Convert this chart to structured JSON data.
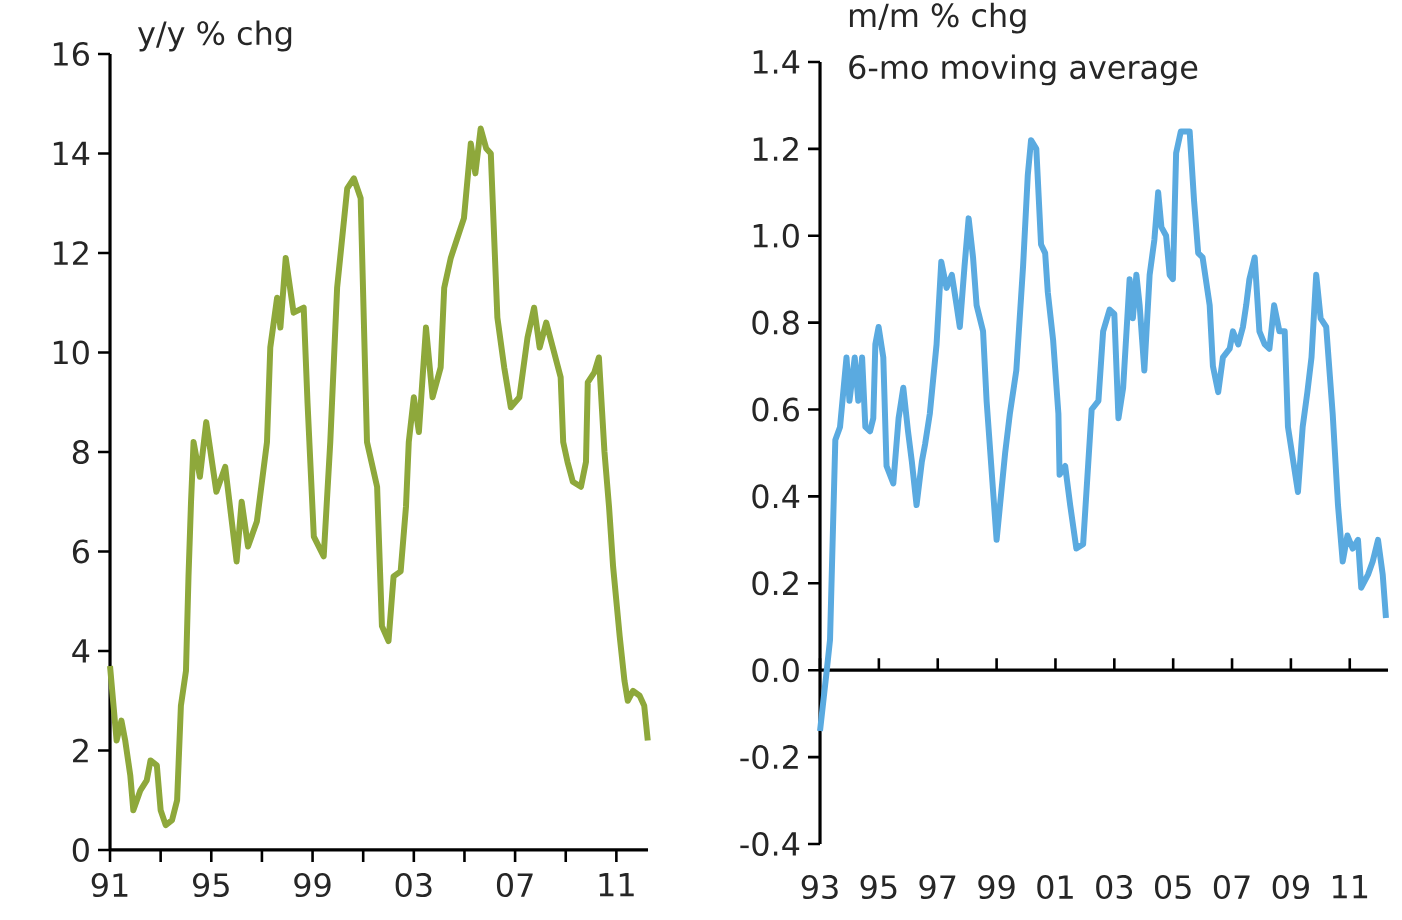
{
  "chart_data": [
    {
      "type": "line",
      "title": "y/y % chg",
      "color": "#8ea83b",
      "xlim": [
        1991,
        2012.25
      ],
      "ylim": [
        0,
        16
      ],
      "xticks": [
        {
          "value": 1991,
          "label": "91"
        },
        {
          "value": 1993,
          "label": null
        },
        {
          "value": 1995,
          "label": "95"
        },
        {
          "value": 1997,
          "label": null
        },
        {
          "value": 1999,
          "label": "99"
        },
        {
          "value": 2001,
          "label": null
        },
        {
          "value": 2003,
          "label": "03"
        },
        {
          "value": 2005,
          "label": null
        },
        {
          "value": 2007,
          "label": "07"
        },
        {
          "value": 2009,
          "label": null
        },
        {
          "value": 2011,
          "label": "11"
        }
      ],
      "yticks": [
        0,
        2,
        4,
        6,
        8,
        10,
        12,
        14,
        16
      ],
      "x": [
        1991.0,
        1991.26,
        1991.45,
        1991.6,
        1991.8,
        1991.92,
        1992.2,
        1992.45,
        1992.6,
        1992.85,
        1993.0,
        1993.2,
        1993.45,
        1993.65,
        1993.8,
        1994.0,
        1994.1,
        1994.2,
        1994.3,
        1994.55,
        1994.8,
        1995.2,
        1995.55,
        1996.0,
        1996.2,
        1996.45,
        1996.8,
        1997.2,
        1997.33,
        1997.6,
        1997.73,
        1997.94,
        1998.25,
        1998.65,
        1998.8,
        1999.05,
        1999.44,
        1999.7,
        1999.97,
        2000.37,
        2000.63,
        2000.9,
        2001.15,
        2001.55,
        2001.74,
        2002.0,
        2002.2,
        2002.48,
        2002.69,
        2002.8,
        2003.0,
        2003.2,
        2003.48,
        2003.74,
        2004.06,
        2004.2,
        2004.46,
        2004.72,
        2004.98,
        2005.25,
        2005.43,
        2005.64,
        2005.86,
        2006.04,
        2006.3,
        2006.57,
        2006.83,
        2007.17,
        2007.49,
        2007.75,
        2007.97,
        2008.23,
        2008.49,
        2008.8,
        2008.9,
        2009.07,
        2009.28,
        2009.6,
        2009.8,
        2009.87,
        2010.13,
        2010.31,
        2010.53,
        2010.71,
        2010.87,
        2011.13,
        2011.32,
        2011.45,
        2011.66,
        2011.92,
        2012.1,
        2012.24
      ],
      "values": [
        3.7,
        2.2,
        2.6,
        2.2,
        1.5,
        0.8,
        1.2,
        1.4,
        1.8,
        1.7,
        0.8,
        0.5,
        0.6,
        1.0,
        2.9,
        3.6,
        5.5,
        7.0,
        8.2,
        7.5,
        8.6,
        7.2,
        7.7,
        5.8,
        7.0,
        6.1,
        6.6,
        8.2,
        10.1,
        11.1,
        10.5,
        11.9,
        10.8,
        10.9,
        9.0,
        6.3,
        5.9,
        8.2,
        11.3,
        13.3,
        13.5,
        13.1,
        8.2,
        7.3,
        4.5,
        4.2,
        5.5,
        5.6,
        6.9,
        8.2,
        9.1,
        8.4,
        10.5,
        9.1,
        9.7,
        11.3,
        11.9,
        12.3,
        12.7,
        14.2,
        13.6,
        14.5,
        14.1,
        14.0,
        10.7,
        9.7,
        8.9,
        9.1,
        10.3,
        10.9,
        10.1,
        10.6,
        10.1,
        9.5,
        8.2,
        7.8,
        7.4,
        7.3,
        7.8,
        9.4,
        9.6,
        9.9,
        8.0,
        6.9,
        5.7,
        4.3,
        3.4,
        3.0,
        3.2,
        3.1,
        2.9,
        2.2
      ]
    },
    {
      "type": "line",
      "title": "m/m % chg",
      "subtitle": "6-mo moving average",
      "color": "#5aaae0",
      "xlim": [
        1993,
        2012.3
      ],
      "ylim": [
        -0.4,
        1.4
      ],
      "xticks": [
        {
          "value": 1993,
          "label": "93"
        },
        {
          "value": 1995,
          "label": "95"
        },
        {
          "value": 1997,
          "label": "97"
        },
        {
          "value": 1999,
          "label": "99"
        },
        {
          "value": 2001,
          "label": "01"
        },
        {
          "value": 2003,
          "label": "03"
        },
        {
          "value": 2005,
          "label": "05"
        },
        {
          "value": 2007,
          "label": "07"
        },
        {
          "value": 2009,
          "label": "09"
        },
        {
          "value": 2011,
          "label": "11"
        }
      ],
      "yticks": [
        {
          "value": -0.4,
          "label": "-0.4"
        },
        {
          "value": -0.2,
          "label": "-0.2"
        },
        {
          "value": 0,
          "label": "0.0"
        },
        {
          "value": 0.2,
          "label": "0.2"
        },
        {
          "value": 0.4,
          "label": "0.4"
        },
        {
          "value": 0.6,
          "label": "0.6"
        },
        {
          "value": 0.8,
          "label": "0.8"
        },
        {
          "value": 1.0,
          "label": "1.0"
        },
        {
          "value": 1.2,
          "label": "1.2"
        },
        {
          "value": 1.4,
          "label": "1.4"
        }
      ],
      "x": [
        1993.0,
        1993.23,
        1993.34,
        1993.52,
        1993.68,
        1993.9,
        1994.0,
        1994.18,
        1994.3,
        1994.43,
        1994.54,
        1994.7,
        1994.81,
        1994.88,
        1994.99,
        1995.15,
        1995.26,
        1995.49,
        1995.67,
        1995.83,
        1995.99,
        1996.12,
        1996.28,
        1996.46,
        1996.57,
        1996.73,
        1996.96,
        1997.12,
        1997.3,
        1997.48,
        1997.64,
        1997.75,
        1997.91,
        1998.05,
        1998.2,
        1998.32,
        1998.54,
        1998.66,
        1999.0,
        1999.29,
        1999.45,
        1999.67,
        1999.9,
        2000.06,
        2000.17,
        2000.35,
        2000.51,
        2000.65,
        2000.74,
        2000.92,
        2001.1,
        2001.14,
        2001.33,
        2001.5,
        2001.71,
        2001.94,
        2002.23,
        2002.46,
        2002.62,
        2002.84,
        2003.0,
        2003.14,
        2003.3,
        2003.52,
        2003.63,
        2003.75,
        2003.86,
        2004.02,
        2004.2,
        2004.36,
        2004.49,
        2004.6,
        2004.76,
        2004.88,
        2004.99,
        2005.1,
        2005.26,
        2005.56,
        2005.71,
        2005.85,
        2006.0,
        2006.24,
        2006.35,
        2006.53,
        2006.69,
        2006.92,
        2007.03,
        2007.21,
        2007.37,
        2007.48,
        2007.59,
        2007.77,
        2007.93,
        2008.11,
        2008.27,
        2008.43,
        2008.61,
        2008.79,
        2008.9,
        2009.24,
        2009.4,
        2009.56,
        2009.7,
        2009.86,
        2010.01,
        2010.2,
        2010.42,
        2010.6,
        2010.76,
        2010.92,
        2011.1,
        2011.28,
        2011.39,
        2011.62,
        2011.78,
        2011.96,
        2012.12,
        2012.23
      ],
      "values": [
        -0.14,
        0.0,
        0.07,
        0.53,
        0.56,
        0.72,
        0.62,
        0.72,
        0.62,
        0.72,
        0.56,
        0.55,
        0.58,
        0.75,
        0.79,
        0.72,
        0.47,
        0.43,
        0.58,
        0.65,
        0.55,
        0.48,
        0.38,
        0.48,
        0.52,
        0.59,
        0.75,
        0.94,
        0.88,
        0.91,
        0.84,
        0.79,
        0.93,
        1.04,
        0.95,
        0.84,
        0.78,
        0.62,
        0.3,
        0.5,
        0.59,
        0.69,
        0.93,
        1.14,
        1.22,
        1.2,
        0.98,
        0.96,
        0.87,
        0.76,
        0.59,
        0.45,
        0.47,
        0.38,
        0.28,
        0.29,
        0.6,
        0.62,
        0.78,
        0.83,
        0.82,
        0.58,
        0.65,
        0.9,
        0.81,
        0.91,
        0.84,
        0.69,
        0.91,
        0.99,
        1.1,
        1.02,
        1.0,
        0.91,
        0.9,
        1.19,
        1.24,
        1.24,
        1.08,
        0.96,
        0.95,
        0.84,
        0.7,
        0.64,
        0.72,
        0.74,
        0.78,
        0.75,
        0.79,
        0.84,
        0.9,
        0.95,
        0.78,
        0.75,
        0.74,
        0.84,
        0.78,
        0.78,
        0.56,
        0.41,
        0.56,
        0.64,
        0.72,
        0.91,
        0.81,
        0.79,
        0.59,
        0.38,
        0.25,
        0.31,
        0.28,
        0.3,
        0.19,
        0.22,
        0.25,
        0.3,
        0.22,
        0.12
      ]
    }
  ]
}
